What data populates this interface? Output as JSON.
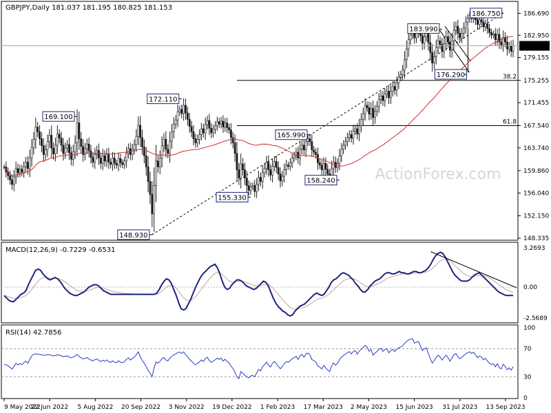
{
  "header": {
    "symbol_line": "GBPJPY,Daily  181.037 181.195 180.825 181.153"
  },
  "watermark": "ActionForex.com",
  "colors": {
    "ma_line": "#d22a2a",
    "macd_line": "#1a237e",
    "signal_line": "#c8a0a0",
    "rsi_line": "#2a3ac8",
    "candle": "#1a1a1a",
    "price_line": "#aaaaaa"
  },
  "chart_data": [
    {
      "type": "candlestick",
      "title": "GBPJPY,Daily",
      "ohlc_last": {
        "open": 181.037,
        "high": 181.195,
        "low": 180.825,
        "close": 181.153
      },
      "current_price_label": "181.153",
      "ylim": [
        148.335,
        188.5
      ],
      "y_ticks": [
        "186.690",
        "182.950",
        "179.155",
        "175.255",
        "171.455",
        "167.540",
        "163.740",
        "159.860",
        "156.040",
        "152.150",
        "148.335"
      ],
      "x_ticks": [
        "9 May 2022",
        "22 Jun 2022",
        "5 Aug 2022",
        "20 Sep 2022",
        "3 Nov 2022",
        "19 Dec 2022",
        "1 Feb 2023",
        "17 Mar 2023",
        "2 May 2023",
        "15 Jun 2023",
        "31 Jul 2023",
        "13 Sep 2023"
      ],
      "annotations": [
        {
          "label": "169.100",
          "x_index": 37,
          "price": 169.1
        },
        {
          "label": "172.110",
          "x_index": 90,
          "price": 172.11
        },
        {
          "label": "148.930",
          "x_index": 75,
          "price": 148.93
        },
        {
          "label": "155.330",
          "x_index": 125,
          "price": 155.33
        },
        {
          "label": "165.990",
          "x_index": 155,
          "price": 165.99
        },
        {
          "label": "158.240",
          "x_index": 170,
          "price": 158.24
        },
        {
          "label": "183.990",
          "x_index": 222,
          "price": 183.99
        },
        {
          "label": "176.290",
          "x_index": 233,
          "price": 176.29
        },
        {
          "label": "186.750",
          "x_index": 253,
          "price": 186.75
        }
      ],
      "fib_levels": [
        {
          "label": "38.2",
          "price": 175.255
        },
        {
          "label": "61.8",
          "price": 167.54
        }
      ],
      "closes": [
        160.5,
        159.6,
        159.0,
        158.3,
        157.5,
        158.8,
        160.2,
        159.5,
        160.1,
        159.6,
        160.5,
        161.3,
        160.2,
        162.0,
        163.8,
        165.2,
        167.3,
        166.5,
        165.3,
        164.1,
        162.6,
        163.4,
        164.8,
        165.9,
        163.7,
        162.7,
        164.2,
        166.1,
        165.4,
        164.2,
        162.8,
        163.7,
        164.3,
        162.9,
        161.8,
        163.1,
        164.6,
        168.0,
        165.3,
        164.0,
        162.6,
        163.6,
        164.4,
        163.2,
        162.1,
        161.3,
        162.6,
        163.3,
        162.0,
        161.1,
        162.4,
        161.5,
        162.6,
        161.3,
        160.9,
        162.0,
        161.1,
        160.8,
        161.9,
        161.2,
        160.9,
        161.5,
        162.8,
        163.6,
        162.6,
        163.5,
        164.3,
        165.7,
        167.6,
        165.5,
        163.9,
        162.4,
        160.5,
        158.0,
        155.8,
        152.5,
        157.3,
        161.5,
        160.5,
        162.0,
        164.1,
        165.2,
        163.5,
        162.8,
        164.9,
        166.5,
        167.8,
        168.5,
        169.9,
        170.3,
        169.6,
        171.0,
        169.7,
        168.6,
        167.4,
        166.5,
        165.3,
        164.6,
        165.2,
        166.0,
        167.0,
        166.3,
        167.7,
        168.4,
        167.1,
        166.3,
        166.9,
        167.5,
        168.2,
        167.8,
        168.3,
        167.3,
        168.0,
        167.2,
        166.8,
        165.5,
        164.6,
        162.8,
        160.0,
        158.6,
        161.0,
        160.0,
        158.6,
        157.3,
        156.5,
        157.1,
        157.3,
        156.3,
        157.5,
        158.7,
        158.0,
        159.5,
        160.2,
        161.3,
        160.0,
        159.1,
        160.6,
        161.4,
        160.4,
        159.3,
        158.1,
        158.9,
        160.0,
        160.8,
        160.6,
        161.2,
        162.0,
        162.4,
        163.0,
        162.0,
        163.5,
        164.2,
        163.4,
        164.8,
        165.3,
        164.8,
        163.4,
        163.0,
        162.6,
        161.2,
        160.8,
        160.0,
        161.1,
        160.1,
        159.3,
        158.6,
        160.2,
        161.3,
        160.4,
        161.1,
        162.4,
        163.5,
        164.2,
        164.8,
        165.5,
        166.0,
        165.4,
        166.6,
        167.0,
        166.1,
        167.5,
        168.6,
        169.6,
        171.0,
        170.6,
        169.5,
        170.5,
        168.9,
        170.0,
        170.8,
        172.0,
        172.6,
        171.8,
        172.9,
        173.4,
        172.3,
        173.4,
        174.2,
        173.6,
        174.8,
        175.8,
        176.2,
        177.0,
        178.8,
        180.6,
        182.2,
        183.0,
        183.5,
        182.5,
        183.3,
        183.9,
        182.9,
        181.6,
        182.7,
        183.3,
        181.7,
        180.0,
        178.2,
        179.3,
        180.9,
        182.0,
        181.4,
        180.2,
        181.5,
        182.7,
        181.8,
        180.4,
        182.0,
        183.8,
        184.5,
        183.3,
        182.5,
        183.3,
        184.2,
        185.2,
        185.8,
        186.3,
        185.8,
        186.4,
        185.6,
        184.8,
        185.6,
        185.2,
        184.4,
        184.9,
        184.1,
        183.4,
        183.0,
        183.2,
        182.2,
        183.1,
        181.8,
        181.3,
        182.6,
        181.8,
        180.6,
        181.1,
        180.2,
        181.2
      ]
    },
    {
      "type": "line",
      "title": "MACD(12,26,9) -0.7229 -0.6531",
      "series": [
        {
          "name": "MACD",
          "values": [
            -0.7,
            -0.9,
            -1.1,
            -1.2,
            -1.2,
            -1.0,
            -0.8,
            -0.6,
            -0.5,
            -0.3,
            0.2,
            0.6,
            1.0,
            1.4,
            1.5,
            1.4,
            1.1,
            0.9,
            0.7,
            0.6,
            0.7,
            0.8,
            0.7,
            0.5,
            0.2,
            -0.1,
            -0.3,
            -0.5,
            -0.6,
            -0.7,
            -0.7,
            -0.6,
            -0.5,
            -0.4,
            -0.2,
            0.0,
            0.1,
            0.2,
            0.2,
            0.1,
            -0.1,
            -0.3,
            -0.4,
            -0.5,
            -0.6,
            -0.6,
            -0.6,
            -0.6,
            -0.6,
            -0.6,
            -0.6,
            -0.6,
            -0.6,
            -0.6,
            -0.6,
            -0.6,
            -0.6,
            -0.6,
            -0.6,
            -0.6,
            -0.6,
            -0.6,
            -0.6,
            -0.5,
            -0.2,
            0.2,
            0.5,
            0.7,
            0.6,
            0.3,
            -0.2,
            -0.7,
            -1.3,
            -1.8,
            -1.9,
            -1.8,
            -1.4,
            -1.0,
            -0.5,
            0.0,
            0.4,
            0.8,
            1.1,
            1.3,
            1.5,
            1.7,
            1.8,
            1.9,
            1.6,
            1.1,
            0.5,
            0.0,
            -0.2,
            -0.1,
            0.2,
            0.4,
            0.6,
            0.6,
            0.5,
            0.3,
            0.1,
            0.0,
            -0.1,
            -0.2,
            -0.1,
            0.1,
            0.3,
            0.5,
            0.4,
            0.1,
            -0.4,
            -0.9,
            -1.3,
            -1.6,
            -1.8,
            -2.0,
            -2.1,
            -2.3,
            -2.4,
            -2.3,
            -2.0,
            -1.8,
            -1.6,
            -1.5,
            -1.4,
            -1.2,
            -1.0,
            -0.8,
            -0.6,
            -0.5,
            -0.6,
            -0.7,
            -0.6,
            -0.3,
            0.0,
            0.4,
            0.6,
            0.7,
            0.9,
            1.1,
            1.2,
            1.1,
            1.0,
            0.8,
            0.6,
            0.3,
            0.1,
            -0.2,
            -0.4,
            -0.4,
            -0.2,
            0.1,
            0.3,
            0.5,
            0.6,
            0.7,
            0.9,
            1.1,
            1.2,
            1.2,
            1.1,
            1.1,
            1.2,
            1.3,
            1.2,
            1.2,
            1.1,
            1.1,
            1.2,
            1.3,
            1.3,
            1.2,
            1.2,
            1.3,
            1.4,
            1.6,
            1.9,
            2.3,
            2.6,
            2.8,
            2.9,
            2.8,
            2.5,
            2.1,
            1.7,
            1.3,
            1.0,
            0.8,
            0.6,
            0.5,
            0.5,
            0.5,
            0.6,
            0.8,
            1.0,
            1.1,
            1.2,
            1.0,
            0.8,
            0.6,
            0.4,
            0.2,
            0.0,
            -0.2,
            -0.4,
            -0.5,
            -0.6,
            -0.7,
            -0.7,
            -0.7,
            -0.7
          ]
        },
        {
          "name": "Signal",
          "values": []
        }
      ],
      "y_ticks": [
        "3.2693",
        "0.00",
        "-2.5689"
      ],
      "ylim": [
        -2.8,
        3.5
      ]
    },
    {
      "type": "line",
      "title": "RSI(14) 42.7856",
      "series": [
        {
          "name": "RSI",
          "values": []
        }
      ],
      "y_ticks": [
        "100",
        "70",
        "30",
        "0"
      ],
      "ylim": [
        0,
        100
      ],
      "levels": [
        70,
        30
      ]
    }
  ]
}
